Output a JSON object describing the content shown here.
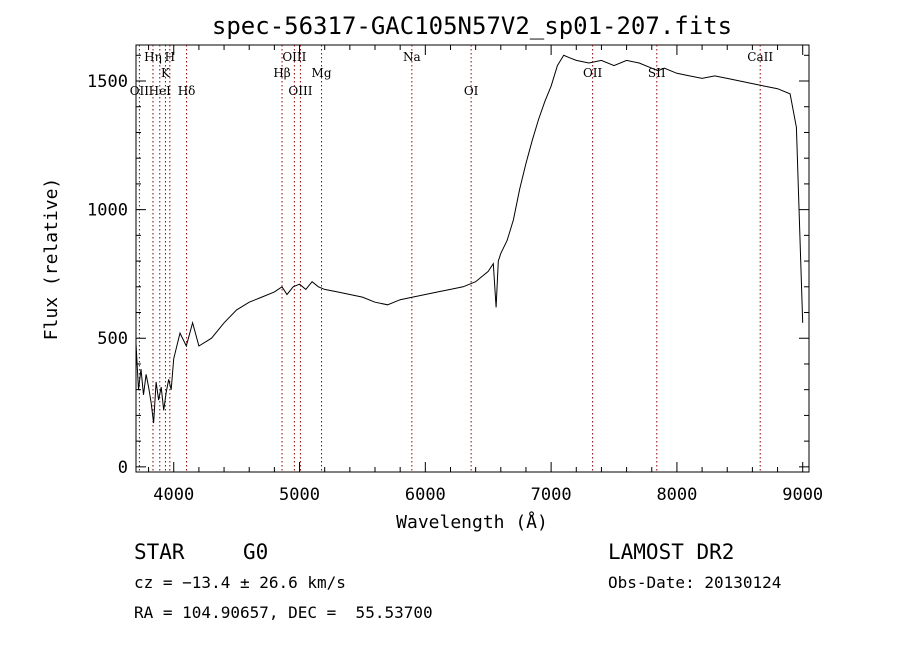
{
  "chart_data": {
    "type": "line",
    "title": "spec-56317-GAC105N57V2_sp01-207.fits",
    "xlabel": "Wavelength (Å)",
    "ylabel": "Flux (relative)",
    "xlim": [
      3700,
      9050
    ],
    "ylim": [
      -20,
      1640
    ],
    "xticks": [
      4000,
      5000,
      6000,
      7000,
      8000,
      9000
    ],
    "yticks": [
      0,
      500,
      1000,
      1500
    ],
    "grid": false,
    "line_color": "#000000",
    "marker_color": "#8b0000",
    "series": [
      {
        "x": [
          3700,
          3720,
          3740,
          3760,
          3780,
          3800,
          3820,
          3840,
          3860,
          3880,
          3900,
          3920,
          3940,
          3960,
          3980,
          4000,
          4050,
          4100,
          4150,
          4200,
          4300,
          4400,
          4500,
          4600,
          4700,
          4800,
          4861,
          4900,
          4950,
          5000,
          5050,
          5100,
          5150,
          5200,
          5300,
          5400,
          5500,
          5600,
          5700,
          5800,
          5900,
          6000,
          6100,
          6200,
          6300,
          6400,
          6500,
          6540,
          6563,
          6580,
          6600,
          6650,
          6700,
          6750,
          6800,
          6850,
          6900,
          6950,
          7000,
          7050,
          7100,
          7150,
          7200,
          7300,
          7400,
          7500,
          7600,
          7700,
          7800,
          7850,
          7900,
          8000,
          8100,
          8200,
          8300,
          8400,
          8500,
          8600,
          8700,
          8800,
          8900,
          8950,
          9000
        ],
        "y": [
          480,
          300,
          380,
          280,
          360,
          310,
          250,
          170,
          330,
          260,
          310,
          220,
          290,
          340,
          300,
          420,
          520,
          470,
          560,
          470,
          500,
          560,
          610,
          640,
          660,
          680,
          700,
          670,
          700,
          710,
          690,
          720,
          700,
          690,
          680,
          670,
          660,
          640,
          630,
          650,
          660,
          670,
          680,
          690,
          700,
          720,
          760,
          790,
          620,
          800,
          830,
          880,
          960,
          1080,
          1180,
          1270,
          1350,
          1420,
          1480,
          1560,
          1600,
          1590,
          1580,
          1570,
          1580,
          1560,
          1580,
          1570,
          1550,
          1540,
          1550,
          1530,
          1520,
          1510,
          1520,
          1510,
          1500,
          1490,
          1480,
          1470,
          1450,
          1320,
          560
        ]
      }
    ],
    "lines": [
      {
        "label": "OII",
        "x": 3727,
        "row": 2
      },
      {
        "label": "Hη",
        "x": 3835,
        "row": 0
      },
      {
        "label": "HeI",
        "x": 3889,
        "row": 2
      },
      {
        "label": "K",
        "x": 3934,
        "row": 1
      },
      {
        "label": "H",
        "x": 3969,
        "row": 0
      },
      {
        "label": "Hδ",
        "x": 4102,
        "row": 2
      },
      {
        "label": "Hβ",
        "x": 4861,
        "row": 1
      },
      {
        "label": "OIII",
        "x": 4959,
        "row": 0
      },
      {
        "label": "OIII",
        "x": 5007,
        "row": 2
      },
      {
        "label": "Mg",
        "x": 5175,
        "row": 1
      },
      {
        "label": "Na",
        "x": 5893,
        "row": 0
      },
      {
        "label": "OI",
        "x": 6364,
        "row": 2
      },
      {
        "label": "OII",
        "x": 7330,
        "row": 1
      },
      {
        "label": "SII",
        "x": 7840,
        "row": 1
      },
      {
        "label": "CaII",
        "x": 8662,
        "row": 0
      }
    ]
  },
  "info": {
    "object_type": "STAR",
    "subclass": "G0",
    "survey": "LAMOST DR2",
    "redshift": "cz = −13.4 ± 26.6 km/s",
    "obs_date": "Obs-Date: 20130124",
    "coordinates": "RA = 104.90657, DEC =  55.53700"
  }
}
